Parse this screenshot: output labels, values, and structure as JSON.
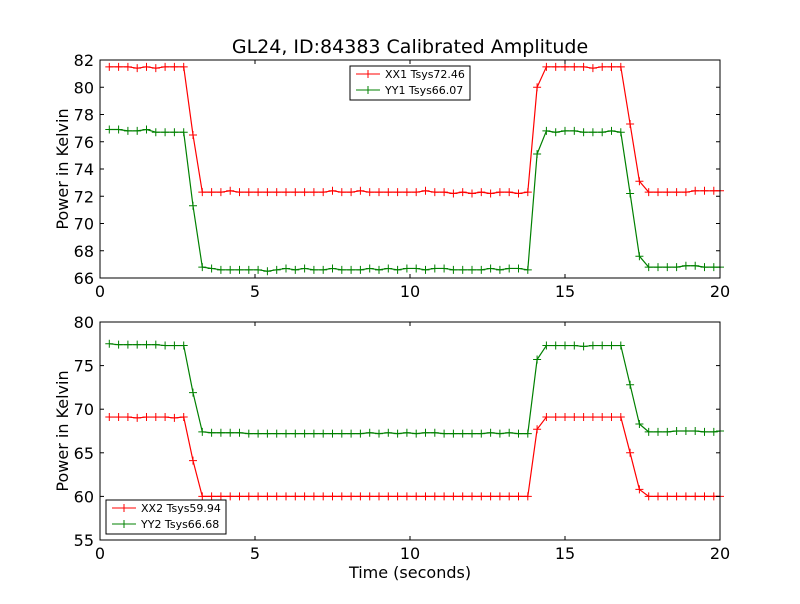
{
  "chart_data": [
    {
      "type": "line",
      "title": "GL24, ID:84383 Calibrated Amplitude",
      "xlabel": "",
      "ylabel": "Power in Kelvin",
      "xlim": [
        0,
        20
      ],
      "ylim": [
        66,
        82
      ],
      "xticks": [
        "0",
        "5",
        "10",
        "15",
        "20"
      ],
      "xtick_values": [
        0,
        5,
        10,
        15,
        20
      ],
      "yticks": [
        "66",
        "68",
        "70",
        "72",
        "74",
        "76",
        "78",
        "80",
        "82"
      ],
      "ytick_values": [
        66,
        68,
        70,
        72,
        74,
        76,
        78,
        80,
        82
      ],
      "legend_placement": "upper-center",
      "grid": false,
      "x": [
        0.3,
        0.6,
        0.9,
        1.2,
        1.5,
        1.8,
        2.1,
        2.4,
        2.7,
        3.0,
        3.3,
        3.6,
        3.9,
        4.2,
        4.5,
        4.8,
        5.1,
        5.4,
        5.7,
        6.0,
        6.3,
        6.6,
        6.9,
        7.2,
        7.5,
        7.8,
        8.1,
        8.4,
        8.7,
        9.0,
        9.3,
        9.6,
        9.9,
        10.2,
        10.5,
        10.8,
        11.1,
        11.4,
        11.7,
        12.0,
        12.3,
        12.6,
        12.9,
        13.2,
        13.5,
        13.8,
        14.1,
        14.4,
        14.7,
        15.0,
        15.3,
        15.6,
        15.9,
        16.2,
        16.5,
        16.8,
        17.1,
        17.4,
        17.7,
        18.0,
        18.3,
        18.6,
        18.9,
        19.2,
        19.5,
        19.8,
        20.0
      ],
      "series": [
        {
          "name": "XX1 Tsys72.46",
          "color": "#ff0000",
          "values": [
            81.5,
            81.5,
            81.5,
            81.4,
            81.5,
            81.4,
            81.5,
            81.5,
            81.5,
            76.5,
            72.3,
            72.3,
            72.3,
            72.4,
            72.3,
            72.3,
            72.3,
            72.3,
            72.3,
            72.3,
            72.3,
            72.3,
            72.3,
            72.3,
            72.4,
            72.3,
            72.3,
            72.4,
            72.3,
            72.3,
            72.3,
            72.3,
            72.3,
            72.3,
            72.4,
            72.3,
            72.3,
            72.2,
            72.3,
            72.2,
            72.3,
            72.2,
            72.3,
            72.3,
            72.2,
            72.3,
            80.0,
            81.5,
            81.5,
            81.5,
            81.5,
            81.5,
            81.4,
            81.5,
            81.5,
            81.5,
            77.3,
            73.1,
            72.3,
            72.3,
            72.3,
            72.3,
            72.3,
            72.4,
            72.4,
            72.4,
            72.4
          ]
        },
        {
          "name": "YY1 Tsys66.07",
          "color": "#008000",
          "values": [
            76.9,
            76.9,
            76.8,
            76.8,
            76.9,
            76.7,
            76.7,
            76.7,
            76.7,
            71.3,
            66.8,
            66.7,
            66.6,
            66.6,
            66.6,
            66.6,
            66.6,
            66.5,
            66.6,
            66.7,
            66.6,
            66.7,
            66.6,
            66.6,
            66.7,
            66.6,
            66.6,
            66.6,
            66.7,
            66.6,
            66.7,
            66.6,
            66.7,
            66.7,
            66.6,
            66.7,
            66.7,
            66.6,
            66.6,
            66.6,
            66.6,
            66.7,
            66.6,
            66.7,
            66.7,
            66.6,
            75.1,
            76.8,
            76.7,
            76.8,
            76.8,
            76.7,
            76.7,
            76.7,
            76.8,
            76.7,
            72.2,
            67.6,
            66.8,
            66.8,
            66.8,
            66.8,
            66.9,
            66.9,
            66.8,
            66.8,
            66.8
          ]
        }
      ]
    },
    {
      "type": "line",
      "title": "",
      "xlabel": "Time (seconds)",
      "ylabel": "Power in Kelvin",
      "xlim": [
        0,
        20
      ],
      "ylim": [
        55,
        80
      ],
      "xticks": [
        "0",
        "5",
        "10",
        "15",
        "20"
      ],
      "xtick_values": [
        0,
        5,
        10,
        15,
        20
      ],
      "yticks": [
        "55",
        "60",
        "65",
        "70",
        "75",
        "80"
      ],
      "ytick_values": [
        55,
        60,
        65,
        70,
        75,
        80
      ],
      "legend_placement": "lower-left",
      "grid": false,
      "x": [
        0.3,
        0.6,
        0.9,
        1.2,
        1.5,
        1.8,
        2.1,
        2.4,
        2.7,
        3.0,
        3.3,
        3.6,
        3.9,
        4.2,
        4.5,
        4.8,
        5.1,
        5.4,
        5.7,
        6.0,
        6.3,
        6.6,
        6.9,
        7.2,
        7.5,
        7.8,
        8.1,
        8.4,
        8.7,
        9.0,
        9.3,
        9.6,
        9.9,
        10.2,
        10.5,
        10.8,
        11.1,
        11.4,
        11.7,
        12.0,
        12.3,
        12.6,
        12.9,
        13.2,
        13.5,
        13.8,
        14.1,
        14.4,
        14.7,
        15.0,
        15.3,
        15.6,
        15.9,
        16.2,
        16.5,
        16.8,
        17.1,
        17.4,
        17.7,
        18.0,
        18.3,
        18.6,
        18.9,
        19.2,
        19.5,
        19.8,
        20.0
      ],
      "series": [
        {
          "name": "XX2 Tsys59.94",
          "color": "#ff0000",
          "values": [
            69.1,
            69.1,
            69.1,
            69.0,
            69.1,
            69.1,
            69.1,
            69.0,
            69.1,
            64.1,
            60.0,
            60.0,
            60.0,
            60.0,
            60.0,
            60.0,
            60.0,
            60.0,
            60.0,
            60.0,
            60.0,
            60.0,
            60.0,
            60.0,
            60.0,
            60.0,
            60.0,
            60.0,
            60.0,
            60.0,
            60.0,
            60.0,
            60.0,
            60.0,
            60.0,
            60.0,
            60.0,
            60.0,
            60.0,
            60.0,
            60.0,
            60.0,
            60.0,
            60.0,
            60.0,
            60.0,
            67.7,
            69.1,
            69.1,
            69.1,
            69.1,
            69.1,
            69.1,
            69.1,
            69.1,
            69.1,
            65.0,
            60.8,
            60.0,
            60.0,
            60.0,
            60.0,
            60.0,
            60.0,
            60.0,
            60.0,
            60.0
          ]
        },
        {
          "name": "YY2 Tsys66.68",
          "color": "#008000",
          "values": [
            77.5,
            77.4,
            77.4,
            77.4,
            77.4,
            77.4,
            77.3,
            77.3,
            77.3,
            71.9,
            67.4,
            67.3,
            67.3,
            67.3,
            67.3,
            67.2,
            67.2,
            67.2,
            67.2,
            67.2,
            67.2,
            67.2,
            67.2,
            67.2,
            67.2,
            67.2,
            67.2,
            67.2,
            67.3,
            67.2,
            67.3,
            67.2,
            67.3,
            67.2,
            67.3,
            67.3,
            67.2,
            67.2,
            67.2,
            67.2,
            67.2,
            67.3,
            67.2,
            67.3,
            67.2,
            67.2,
            75.7,
            77.3,
            77.3,
            77.3,
            77.3,
            77.2,
            77.3,
            77.3,
            77.3,
            77.3,
            72.8,
            68.3,
            67.4,
            67.4,
            67.4,
            67.5,
            67.5,
            67.5,
            67.4,
            67.4,
            67.5
          ]
        }
      ]
    }
  ]
}
